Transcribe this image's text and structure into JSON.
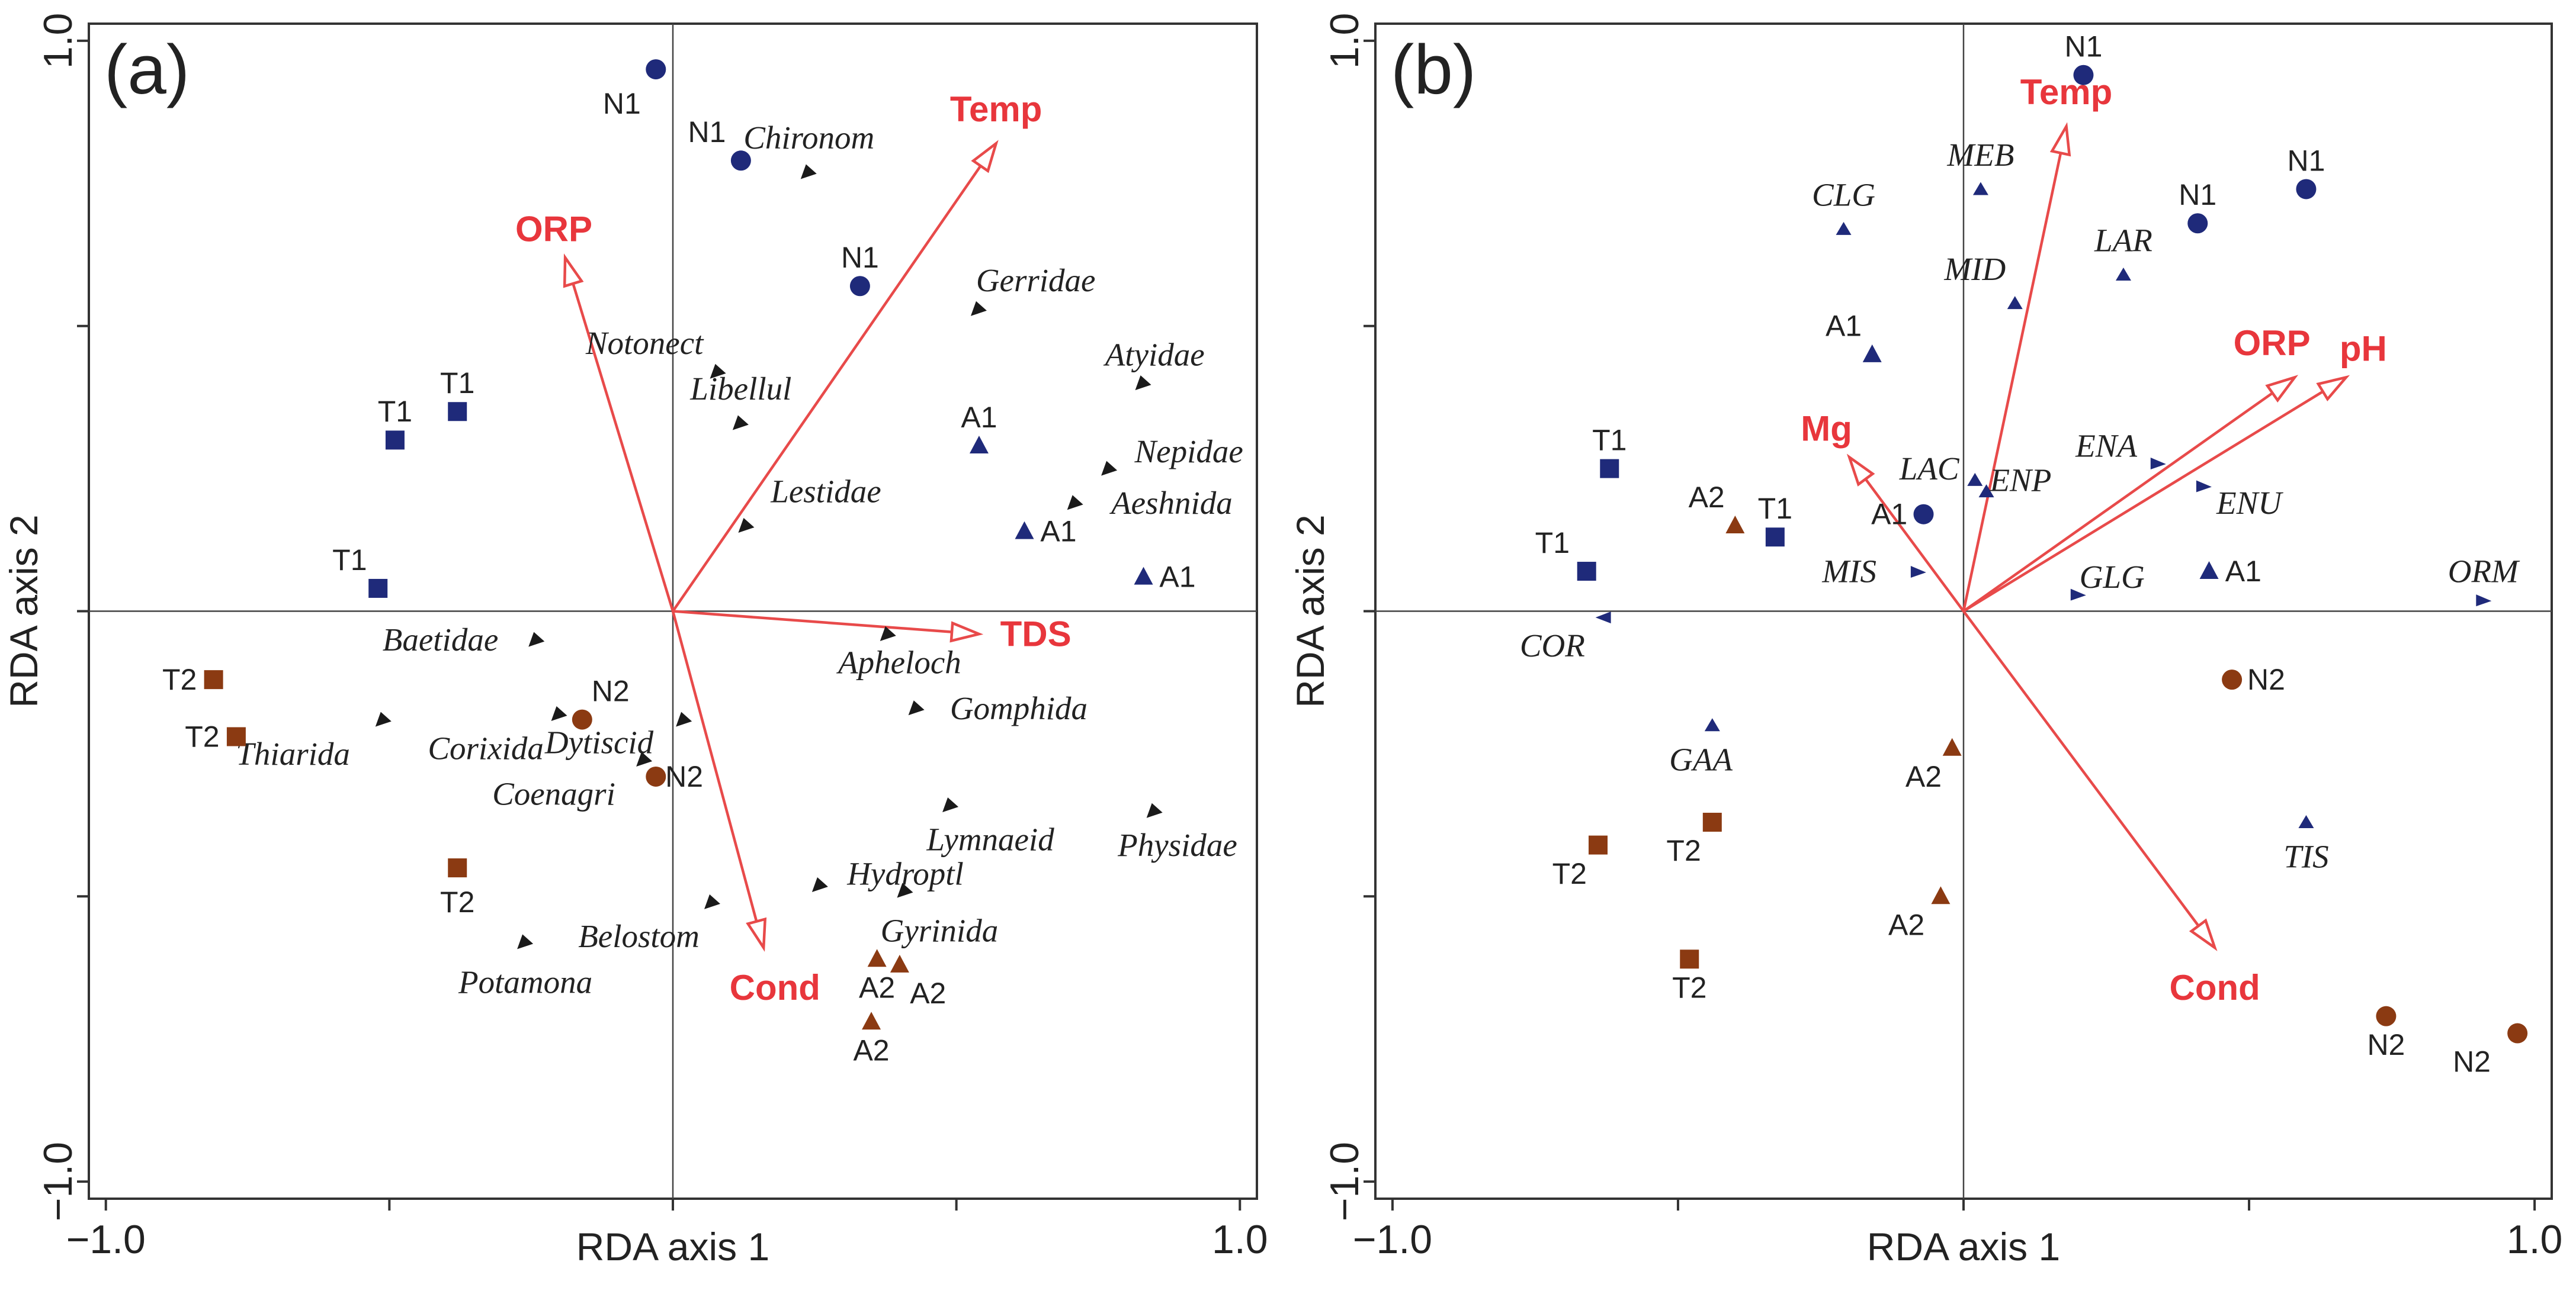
{
  "chart_data": [
    {
      "type": "scatter",
      "panel_label": "(a)",
      "xlabel": "RDA axis 1",
      "ylabel": "RDA axis 2",
      "xlim": [
        -1.03,
        1.03
      ],
      "ylim": [
        -1.03,
        1.03
      ],
      "x_ticks": [
        {
          "value": -1,
          "label": "−1.0"
        },
        {
          "value": 1,
          "label": "1.0"
        }
      ],
      "y_ticks": [
        {
          "value": 1,
          "label": "1.0"
        },
        {
          "value": -1,
          "label": "−1.0"
        }
      ],
      "grid": false,
      "zero_lines": true,
      "sites": [
        {
          "label": "N1",
          "group": "N1",
          "shape": "circle",
          "color": "#1f2a7a",
          "x": -0.03,
          "y": 0.95,
          "label_dx": -0.06,
          "label_dy": -0.06
        },
        {
          "label": "N1",
          "group": "N1",
          "shape": "circle",
          "color": "#1f2a7a",
          "x": 0.12,
          "y": 0.79,
          "label_dx": -0.06,
          "label_dy": 0.05
        },
        {
          "label": "N1",
          "group": "N1",
          "shape": "circle",
          "color": "#1f2a7a",
          "x": 0.33,
          "y": 0.57,
          "label_dx": 0.0,
          "label_dy": 0.05
        },
        {
          "label": "T1",
          "group": "T1",
          "shape": "square",
          "color": "#1f2a7a",
          "x": -0.49,
          "y": 0.3,
          "label_dx": 0.0,
          "label_dy": 0.05
        },
        {
          "label": "T1",
          "group": "T1",
          "shape": "square",
          "color": "#1f2a7a",
          "x": -0.38,
          "y": 0.35,
          "label_dx": 0.0,
          "label_dy": 0.05
        },
        {
          "label": "T1",
          "group": "T1",
          "shape": "square",
          "color": "#1f2a7a",
          "x": -0.52,
          "y": 0.04,
          "label_dx": -0.05,
          "label_dy": 0.05
        },
        {
          "label": "A1",
          "group": "A1",
          "shape": "triangle",
          "color": "#1f2a7a",
          "x": 0.54,
          "y": 0.29,
          "label_dx": 0.0,
          "label_dy": 0.05
        },
        {
          "label": "A1",
          "group": "A1",
          "shape": "triangle",
          "color": "#1f2a7a",
          "x": 0.62,
          "y": 0.14,
          "label_dx": 0.06,
          "label_dy": 0.0
        },
        {
          "label": "A1",
          "group": "A1",
          "shape": "triangle",
          "color": "#1f2a7a",
          "x": 0.83,
          "y": 0.06,
          "label_dx": 0.06,
          "label_dy": 0.0
        },
        {
          "label": "T2",
          "group": "T2",
          "shape": "square",
          "color": "#8b3a12",
          "x": -0.81,
          "y": -0.12,
          "label_dx": -0.06,
          "label_dy": 0.0
        },
        {
          "label": "T2",
          "group": "T2",
          "shape": "square",
          "color": "#8b3a12",
          "x": -0.77,
          "y": -0.22,
          "label_dx": -0.06,
          "label_dy": 0.0
        },
        {
          "label": "T2",
          "group": "T2",
          "shape": "square",
          "color": "#8b3a12",
          "x": -0.38,
          "y": -0.45,
          "label_dx": 0.0,
          "label_dy": -0.06
        },
        {
          "label": "N2",
          "group": "N2",
          "shape": "circle",
          "color": "#8b3a12",
          "x": -0.16,
          "y": -0.19,
          "label_dx": 0.05,
          "label_dy": 0.05
        },
        {
          "label": "N2",
          "group": "N2",
          "shape": "circle",
          "color": "#8b3a12",
          "x": -0.03,
          "y": -0.29,
          "label_dx": 0.05,
          "label_dy": 0.0
        },
        {
          "label": "A2",
          "group": "A2",
          "shape": "triangle",
          "color": "#8b3a12",
          "x": 0.36,
          "y": -0.61,
          "label_dx": 0.0,
          "label_dy": -0.05
        },
        {
          "label": "A2",
          "group": "A2",
          "shape": "triangle",
          "color": "#8b3a12",
          "x": 0.4,
          "y": -0.62,
          "label_dx": 0.05,
          "label_dy": -0.05
        },
        {
          "label": "A2",
          "group": "A2",
          "shape": "triangle",
          "color": "#8b3a12",
          "x": 0.35,
          "y": -0.72,
          "label_dx": 0.0,
          "label_dy": -0.05
        }
      ],
      "species": [
        {
          "label": "Chironom",
          "x": 0.24,
          "y": 0.77,
          "label_dx": 0.0,
          "label_dy": 0.06,
          "dir": "dl"
        },
        {
          "label": "Notonect",
          "x": 0.08,
          "y": 0.42,
          "label_dx": -0.13,
          "label_dy": 0.05,
          "dir": "dl"
        },
        {
          "label": "Libellul",
          "x": 0.12,
          "y": 0.33,
          "label_dx": 0.0,
          "label_dy": 0.06,
          "dir": "dl"
        },
        {
          "label": "Lestidae",
          "x": 0.13,
          "y": 0.15,
          "label_dx": 0.14,
          "label_dy": 0.06,
          "dir": "dl"
        },
        {
          "label": "Gerridae",
          "x": 0.54,
          "y": 0.53,
          "label_dx": 0.1,
          "label_dy": 0.05,
          "dir": "dl"
        },
        {
          "label": "Atyidae",
          "x": 0.83,
          "y": 0.4,
          "label_dx": 0.02,
          "label_dy": 0.05,
          "dir": "dl"
        },
        {
          "label": "Nepidae",
          "x": 0.77,
          "y": 0.25,
          "label_dx": 0.14,
          "label_dy": 0.03,
          "dir": "dl"
        },
        {
          "label": "Aeshnida",
          "x": 0.71,
          "y": 0.19,
          "label_dx": 0.17,
          "label_dy": 0.0,
          "dir": "dl"
        },
        {
          "label": "Baetidae",
          "x": -0.24,
          "y": -0.05,
          "label_dx": -0.17,
          "label_dy": 0.0,
          "dir": "dl"
        },
        {
          "label": "Apheloch",
          "x": 0.38,
          "y": -0.04,
          "label_dx": 0.02,
          "label_dy": -0.05,
          "dir": "dl"
        },
        {
          "label": "Gomphida",
          "x": 0.43,
          "y": -0.17,
          "label_dx": 0.18,
          "label_dy": 0.0,
          "dir": "dl"
        },
        {
          "label": "Thiarida",
          "x": -0.51,
          "y": -0.19,
          "label_dx": -0.16,
          "label_dy": -0.06,
          "dir": "dl"
        },
        {
          "label": "Corixida",
          "x": -0.2,
          "y": -0.18,
          "label_dx": -0.13,
          "label_dy": -0.06,
          "dir": "dl"
        },
        {
          "label": "Dytiscid",
          "x": 0.02,
          "y": -0.19,
          "label_dx": -0.15,
          "label_dy": -0.04,
          "dir": "dl"
        },
        {
          "label": "Coenagri",
          "x": -0.05,
          "y": -0.26,
          "label_dx": -0.16,
          "label_dy": -0.06,
          "dir": "dl"
        },
        {
          "label": "Lymnaeid",
          "x": 0.49,
          "y": -0.34,
          "label_dx": 0.07,
          "label_dy": -0.06,
          "dir": "dl"
        },
        {
          "label": "Physidae",
          "x": 0.85,
          "y": -0.35,
          "label_dx": 0.04,
          "label_dy": -0.06,
          "dir": "dl"
        },
        {
          "label": "Hydroptl",
          "x": 0.26,
          "y": -0.48,
          "label_dx": 0.15,
          "label_dy": 0.02,
          "dir": "dl"
        },
        {
          "label": "Gyrinida",
          "x": 0.41,
          "y": -0.49,
          "label_dx": 0.06,
          "label_dy": -0.07,
          "dir": "dl"
        },
        {
          "label": "Belostom",
          "x": 0.07,
          "y": -0.51,
          "label_dx": -0.13,
          "label_dy": -0.06,
          "dir": "dl"
        },
        {
          "label": "Potamona",
          "x": -0.26,
          "y": -0.58,
          "label_dx": 0.0,
          "label_dy": -0.07,
          "dir": "dl"
        }
      ],
      "env_vectors": [
        {
          "label": "Temp",
          "x": 0.57,
          "y": 0.82,
          "label_dx": 0.0,
          "label_dy": 0.06
        },
        {
          "label": "ORP",
          "x": -0.19,
          "y": 0.62,
          "label_dx": -0.02,
          "label_dy": 0.05
        },
        {
          "label": "TDS",
          "x": 0.54,
          "y": -0.04,
          "label_dx": 0.1,
          "label_dy": 0.0
        },
        {
          "label": "Cond",
          "x": 0.16,
          "y": -0.59,
          "label_dx": 0.02,
          "label_dy": -0.07
        }
      ]
    },
    {
      "type": "scatter",
      "panel_label": "(b)",
      "xlabel": "RDA axis 1",
      "ylabel": "RDA axis 2",
      "xlim": [
        -1.03,
        1.03
      ],
      "ylim": [
        -1.03,
        1.03
      ],
      "x_ticks": [
        {
          "value": -1,
          "label": "−1.0"
        },
        {
          "value": 1,
          "label": "1.0"
        }
      ],
      "y_ticks": [
        {
          "value": 1,
          "label": "1.0"
        },
        {
          "value": -1,
          "label": "−1.0"
        }
      ],
      "grid": false,
      "zero_lines": true,
      "sites": [
        {
          "label": "N1",
          "group": "N1",
          "shape": "circle",
          "color": "#1f2a7a",
          "x": 0.21,
          "y": 0.94,
          "label_dx": 0.0,
          "label_dy": 0.05
        },
        {
          "label": "N1",
          "group": "N1",
          "shape": "circle",
          "color": "#1f2a7a",
          "x": 0.41,
          "y": 0.68,
          "label_dx": 0.0,
          "label_dy": 0.05
        },
        {
          "label": "N1",
          "group": "N1",
          "shape": "circle",
          "color": "#1f2a7a",
          "x": 0.6,
          "y": 0.74,
          "label_dx": 0.0,
          "label_dy": 0.05
        },
        {
          "label": "A1",
          "group": "A1",
          "shape": "circle",
          "color": "#1f2a7a",
          "x": -0.07,
          "y": 0.17,
          "label_dx": -0.06,
          "label_dy": 0.0
        },
        {
          "label": "A1",
          "group": "A1",
          "shape": "triangle",
          "color": "#1f2a7a",
          "x": -0.16,
          "y": 0.45,
          "label_dx": -0.05,
          "label_dy": 0.05
        },
        {
          "label": "A1",
          "group": "A1",
          "shape": "triangle",
          "color": "#1f2a7a",
          "x": 0.43,
          "y": 0.07,
          "label_dx": 0.06,
          "label_dy": 0.0
        },
        {
          "label": "T1",
          "group": "T1",
          "shape": "square",
          "color": "#1f2a7a",
          "x": -0.62,
          "y": 0.25,
          "label_dx": 0.0,
          "label_dy": 0.05
        },
        {
          "label": "T1",
          "group": "T1",
          "shape": "square",
          "color": "#1f2a7a",
          "x": -0.33,
          "y": 0.13,
          "label_dx": 0.0,
          "label_dy": 0.05
        },
        {
          "label": "T1",
          "group": "T1",
          "shape": "square",
          "color": "#1f2a7a",
          "x": -0.66,
          "y": 0.07,
          "label_dx": -0.06,
          "label_dy": 0.05
        },
        {
          "label": "A2",
          "group": "A2",
          "shape": "triangle",
          "color": "#8b3a12",
          "x": -0.4,
          "y": 0.15,
          "label_dx": -0.05,
          "label_dy": 0.05
        },
        {
          "label": "A2",
          "group": "A2",
          "shape": "triangle",
          "color": "#8b3a12",
          "x": -0.02,
          "y": -0.24,
          "label_dx": -0.05,
          "label_dy": -0.05
        },
        {
          "label": "A2",
          "group": "A2",
          "shape": "triangle",
          "color": "#8b3a12",
          "x": -0.04,
          "y": -0.5,
          "label_dx": -0.06,
          "label_dy": -0.05
        },
        {
          "label": "T2",
          "group": "T2",
          "shape": "square",
          "color": "#8b3a12",
          "x": -0.64,
          "y": -0.41,
          "label_dx": -0.05,
          "label_dy": -0.05
        },
        {
          "label": "T2",
          "group": "T2",
          "shape": "square",
          "color": "#8b3a12",
          "x": -0.44,
          "y": -0.37,
          "label_dx": -0.05,
          "label_dy": -0.05
        },
        {
          "label": "T2",
          "group": "T2",
          "shape": "square",
          "color": "#8b3a12",
          "x": -0.48,
          "y": -0.61,
          "label_dx": 0.0,
          "label_dy": -0.05
        },
        {
          "label": "N2",
          "group": "N2",
          "shape": "circle",
          "color": "#8b3a12",
          "x": 0.47,
          "y": -0.12,
          "label_dx": 0.06,
          "label_dy": 0.0
        },
        {
          "label": "N2",
          "group": "N2",
          "shape": "circle",
          "color": "#8b3a12",
          "x": 0.74,
          "y": -0.71,
          "label_dx": 0.0,
          "label_dy": -0.05
        },
        {
          "label": "N2",
          "group": "N2",
          "shape": "circle",
          "color": "#8b3a12",
          "x": 0.97,
          "y": -0.74,
          "label_dx": -0.08,
          "label_dy": -0.05
        }
      ],
      "species": [
        {
          "label": "CLG",
          "x": -0.21,
          "y": 0.67,
          "label_dx": 0.0,
          "label_dy": 0.06,
          "dir": "up"
        },
        {
          "label": "MEB",
          "x": 0.03,
          "y": 0.74,
          "label_dx": 0.0,
          "label_dy": 0.06,
          "dir": "up"
        },
        {
          "label": "MID",
          "x": 0.09,
          "y": 0.54,
          "label_dx": -0.07,
          "label_dy": 0.06,
          "dir": "up"
        },
        {
          "label": "LAR",
          "x": 0.28,
          "y": 0.59,
          "label_dx": 0.0,
          "label_dy": 0.06,
          "dir": "up"
        },
        {
          "label": "ENA",
          "x": 0.34,
          "y": 0.26,
          "label_dx": -0.09,
          "label_dy": 0.03,
          "dir": "right"
        },
        {
          "label": "ENU",
          "x": 0.42,
          "y": 0.22,
          "label_dx": 0.08,
          "label_dy": -0.03,
          "dir": "right"
        },
        {
          "label": "LAC",
          "x": 0.02,
          "y": 0.23,
          "label_dx": -0.08,
          "label_dy": 0.02,
          "dir": "up"
        },
        {
          "label": "ENP",
          "x": 0.04,
          "y": 0.21,
          "label_dx": 0.06,
          "label_dy": 0.02,
          "dir": "up"
        },
        {
          "label": "MIS",
          "x": -0.08,
          "y": 0.07,
          "label_dx": -0.12,
          "label_dy": 0.0,
          "dir": "right"
        },
        {
          "label": "GLG",
          "x": 0.2,
          "y": 0.03,
          "label_dx": 0.06,
          "label_dy": 0.03,
          "dir": "right"
        },
        {
          "label": "ORM",
          "x": 0.91,
          "y": 0.02,
          "label_dx": 0.0,
          "label_dy": 0.05,
          "dir": "right"
        },
        {
          "label": "COR",
          "x": -0.63,
          "y": -0.01,
          "label_dx": -0.09,
          "label_dy": -0.05,
          "dir": "left"
        },
        {
          "label": "GAA",
          "x": -0.44,
          "y": -0.2,
          "label_dx": -0.02,
          "label_dy": -0.06,
          "dir": "up"
        },
        {
          "label": "TIS",
          "x": 0.6,
          "y": -0.37,
          "label_dx": 0.0,
          "label_dy": -0.06,
          "dir": "up"
        }
      ],
      "env_vectors": [
        {
          "label": "Temp",
          "x": 0.18,
          "y": 0.85,
          "label_dx": 0.0,
          "label_dy": 0.06
        },
        {
          "label": "Mg",
          "x": -0.2,
          "y": 0.27,
          "label_dx": -0.04,
          "label_dy": 0.05
        },
        {
          "label": "ORP",
          "x": 0.58,
          "y": 0.41,
          "label_dx": -0.04,
          "label_dy": 0.06
        },
        {
          "label": "pH",
          "x": 0.67,
          "y": 0.41,
          "label_dx": 0.03,
          "label_dy": 0.05
        },
        {
          "label": "Cond",
          "x": 0.44,
          "y": -0.59,
          "label_dx": 0.0,
          "label_dy": -0.07
        }
      ]
    }
  ]
}
